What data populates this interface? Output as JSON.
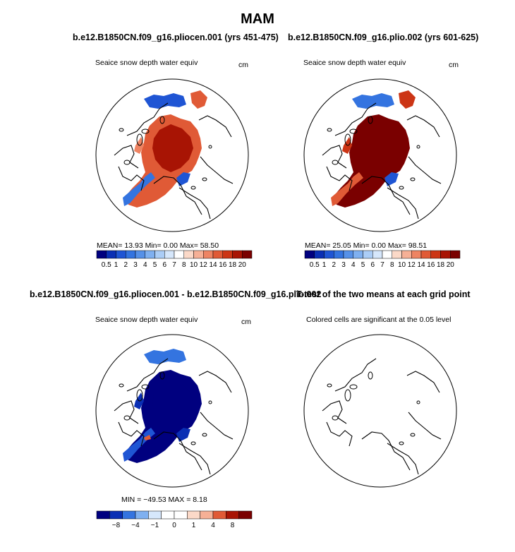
{
  "figure": {
    "title": "MAM"
  },
  "panels": [
    {
      "title": "b.e12.B1850CN.f09_g16.pliocen.001 (yrs 451-475)",
      "subtitle": "Seaice snow depth water equiv",
      "units": "cm",
      "stats": "MEAN=   13.93   Min=    0.00   Max=   58.50"
    },
    {
      "title": "b.e12.B1850CN.f09_g16.plio.002 (yrs 601-625)",
      "subtitle": "Seaice snow depth water equiv",
      "units": "cm",
      "stats": "MEAN=   25.05   Min=    0.00   Max=   98.51"
    },
    {
      "title": "b.e12.B1850CN.f09_g16.pliocen.001 - b.e12.B1850CN.f09_g16.plio.002",
      "subtitle": "Seaice snow depth water equiv",
      "units": "cm",
      "stats": "MIN = −49.53  MAX =    8.18"
    },
    {
      "title": "T-test of the two means at each grid point",
      "subtitle": "Colored cells are significant at the 0.05 level",
      "units": "",
      "stats": ""
    }
  ],
  "chart_data": [
    {
      "type": "heatmap",
      "projection": "north-polar-stereographic",
      "title": "b.e12.B1850CN.f09_g16.pliocen.001 (yrs 451-475)",
      "variable": "Seaice snow depth water equiv",
      "units": "cm",
      "mean": 13.93,
      "min": 0.0,
      "max": 58.5,
      "colorbar_labels": [
        "0.5",
        "1",
        "2",
        "3",
        "4",
        "5",
        "6",
        "7",
        "8",
        "10",
        "12",
        "14",
        "16",
        "18",
        "20"
      ],
      "colors": [
        "#00007f",
        "#0a2fb4",
        "#1f55d4",
        "#3474e0",
        "#5691e8",
        "#7fb0f0",
        "#abcdf6",
        "#d6e7fb",
        "#ffffff",
        "#fbd9c8",
        "#f6b096",
        "#ee8463",
        "#e05a36",
        "#cc3515",
        "#a81404",
        "#7a0000"
      ]
    },
    {
      "type": "heatmap",
      "projection": "north-polar-stereographic",
      "title": "b.e12.B1850CN.f09_g16.plio.002 (yrs 601-625)",
      "variable": "Seaice snow depth water equiv",
      "units": "cm",
      "mean": 25.05,
      "min": 0.0,
      "max": 98.51,
      "colorbar_labels": [
        "0.5",
        "1",
        "2",
        "3",
        "4",
        "5",
        "6",
        "7",
        "8",
        "10",
        "12",
        "14",
        "16",
        "18",
        "20"
      ],
      "colors": [
        "#00007f",
        "#0a2fb4",
        "#1f55d4",
        "#3474e0",
        "#5691e8",
        "#7fb0f0",
        "#abcdf6",
        "#d6e7fb",
        "#ffffff",
        "#fbd9c8",
        "#f6b096",
        "#ee8463",
        "#e05a36",
        "#cc3515",
        "#a81404",
        "#7a0000"
      ]
    },
    {
      "type": "heatmap",
      "projection": "north-polar-stereographic",
      "title": "b.e12.B1850CN.f09_g16.pliocen.001 - b.e12.B1850CN.f09_g16.plio.002",
      "variable": "Seaice snow depth water equiv",
      "units": "cm",
      "min": -49.53,
      "max": 8.18,
      "colorbar_labels": [
        "−8",
        "−4",
        "−1",
        "0",
        "1",
        "4",
        "8"
      ],
      "colors": [
        "#00007f",
        "#0a2fb4",
        "#3474e0",
        "#7fb0f0",
        "#d6e7fb",
        "#ffffff",
        "#ffffff",
        "#fbd9c8",
        "#f6b096",
        "#e05a36",
        "#a81404",
        "#7a0000"
      ]
    },
    {
      "type": "heatmap",
      "projection": "north-polar-stereographic",
      "title": "T-test of the two means at each grid point",
      "variable": "Colored cells are significant at the 0.05 level",
      "units": ""
    }
  ]
}
